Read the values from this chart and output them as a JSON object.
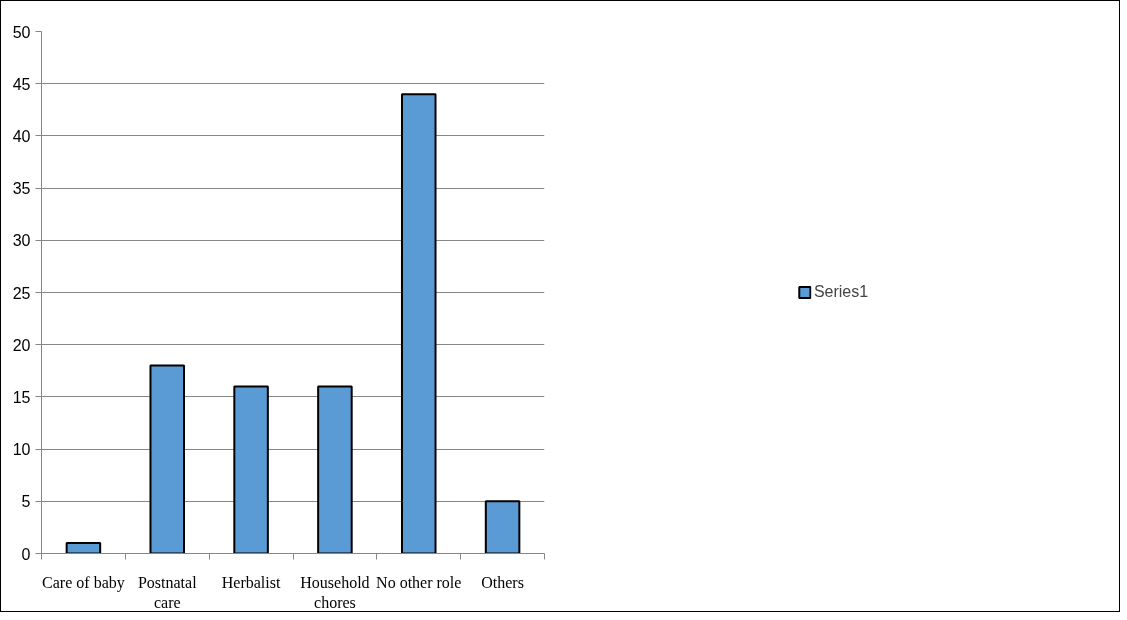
{
  "chart_data": {
    "type": "bar",
    "categories": [
      "Care of baby",
      "Postnatal\ncare",
      "Herbalist",
      "Household\nchores",
      "No other role",
      "Others"
    ],
    "series": [
      {
        "name": "Series1",
        "color": "#5b9bd5",
        "values": [
          1,
          18,
          16,
          16,
          44,
          5
        ]
      }
    ],
    "ylim": [
      0,
      50
    ],
    "yticks": [
      0,
      5,
      10,
      15,
      20,
      25,
      30,
      35,
      40,
      45,
      50
    ],
    "grid": "y",
    "legend": "right"
  }
}
